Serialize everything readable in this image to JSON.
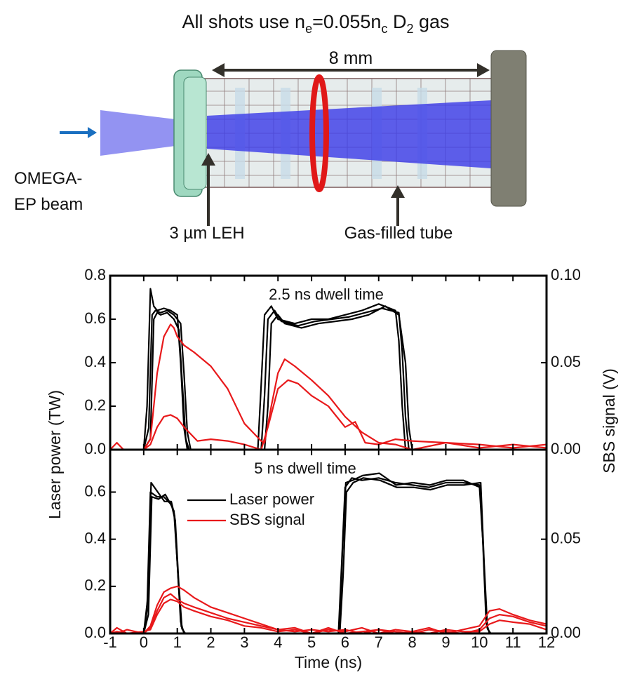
{
  "title_segments": [
    {
      "text": "All shots use n"
    },
    {
      "text": "e",
      "sub": true
    },
    {
      "text": "=0.055n"
    },
    {
      "text": "c",
      "sub": true
    },
    {
      "text": " D"
    },
    {
      "text": "2",
      "sub": true
    },
    {
      "text": " gas"
    }
  ],
  "diagram": {
    "dimension": "8 mm",
    "beam_label": [
      "OMEGA-",
      "EP beam"
    ],
    "leh_label": "3 µm LEH",
    "tube_label": "Gas-filled tube"
  },
  "chart_data": [
    {
      "type": "line",
      "title": "2.5 ns dwell time",
      "y_label": "Laser power (TW)",
      "y2_label": "SBS signal (V)",
      "xlim": [
        -1,
        12
      ],
      "xticks": [
        -1,
        0,
        1,
        2,
        3,
        4,
        5,
        6,
        7,
        8,
        9,
        10,
        11,
        12
      ],
      "ylim": [
        0,
        0.8
      ],
      "yticks": [
        {
          "value": 0,
          "label": "0.0"
        },
        0.2,
        0.4,
        0.6,
        0.8
      ],
      "y2lim": [
        0,
        0.1
      ],
      "y2ticks": [
        {
          "value": 0,
          "label": "0.00"
        },
        0.05,
        {
          "value": 0.1,
          "label": "0.10"
        }
      ],
      "series": [
        {
          "color": "#000000",
          "x": [
            -1,
            0,
            0.1,
            0.2,
            0.3,
            0.4,
            0.6,
            0.8,
            1.0,
            1.1,
            1.2,
            1.3,
            1.5,
            2,
            3,
            3.4,
            3.5,
            3.6,
            3.8,
            4,
            4.5,
            5,
            5.5,
            6,
            6.5,
            7,
            7.5,
            7.6,
            7.7,
            7.8,
            8,
            9,
            12
          ],
          "values": [
            0,
            0,
            0.2,
            0.74,
            0.66,
            0.64,
            0.65,
            0.64,
            0.62,
            0.4,
            0.1,
            0,
            0,
            0,
            0,
            0,
            0.3,
            0.62,
            0.66,
            0.6,
            0.58,
            0.6,
            0.6,
            0.62,
            0.64,
            0.67,
            0.64,
            0.5,
            0.2,
            0,
            0,
            0,
            0
          ]
        },
        {
          "color": "#000000",
          "x": [
            -1,
            0,
            0.15,
            0.25,
            0.35,
            0.5,
            0.7,
            0.9,
            1.1,
            1.2,
            1.3,
            1.4,
            1.6,
            2,
            3,
            3.5,
            3.6,
            3.7,
            3.9,
            4.1,
            4.6,
            5.1,
            5.6,
            6.1,
            6.6,
            7.1,
            7.6,
            7.7,
            7.8,
            7.9,
            8.1,
            9,
            12
          ],
          "values": [
            0,
            0,
            0.1,
            0.62,
            0.64,
            0.63,
            0.64,
            0.62,
            0.58,
            0.35,
            0.08,
            0,
            0,
            0,
            0,
            0,
            0.25,
            0.6,
            0.64,
            0.59,
            0.57,
            0.59,
            0.6,
            0.61,
            0.63,
            0.65,
            0.63,
            0.45,
            0.15,
            0,
            0,
            0,
            0
          ]
        },
        {
          "color": "#000000",
          "x": [
            -1,
            0,
            0.2,
            0.3,
            0.4,
            0.5,
            0.7,
            0.9,
            1.05,
            1.15,
            1.25,
            1.35,
            1.6,
            2,
            3,
            3.6,
            3.7,
            3.8,
            4,
            4.2,
            4.7,
            5.2,
            5.7,
            6.2,
            6.7,
            7.2,
            7.6,
            7.8,
            7.9,
            8,
            8.2,
            9,
            12
          ],
          "values": [
            0,
            0,
            0.05,
            0.6,
            0.63,
            0.62,
            0.63,
            0.6,
            0.55,
            0.3,
            0.05,
            0,
            0,
            0,
            0,
            0,
            0.2,
            0.58,
            0.62,
            0.58,
            0.56,
            0.58,
            0.59,
            0.6,
            0.62,
            0.66,
            0.62,
            0.4,
            0.1,
            0,
            0,
            0,
            0
          ]
        },
        {
          "color": "#e8191b",
          "axis": "y2",
          "x": [
            -1,
            -0.8,
            -0.6,
            0,
            0.2,
            0.4,
            0.6,
            0.8,
            0.9,
            1.0,
            1.2,
            1.5,
            2,
            2.5,
            3,
            3.5,
            3.6,
            3.8,
            4,
            4.2,
            4.5,
            5,
            5.5,
            6,
            6.5,
            7,
            7.5,
            8,
            9,
            10,
            11,
            12
          ],
          "values": [
            0,
            0.004,
            0,
            0,
            0.006,
            0.044,
            0.065,
            0.072,
            0.07,
            0.065,
            0.06,
            0.056,
            0.048,
            0.035,
            0.015,
            0.005,
            0.004,
            0.025,
            0.044,
            0.052,
            0.048,
            0.04,
            0.031,
            0.019,
            0.01,
            0.004,
            0.003,
            0,
            0.004,
            0.003,
            0.001,
            0.003
          ]
        },
        {
          "color": "#e8191b",
          "axis": "y2",
          "x": [
            0,
            0.2,
            0.4,
            0.6,
            0.8,
            1.0,
            1.2,
            1.6,
            2,
            2.5,
            3,
            3.5,
            3.7,
            4,
            4.3,
            4.6,
            5,
            5.5,
            6,
            6.3,
            6.6,
            7,
            7.5,
            8,
            9,
            10,
            11,
            12
          ],
          "values": [
            0,
            0.003,
            0.013,
            0.019,
            0.02,
            0.018,
            0.013,
            0.005,
            0.006,
            0.005,
            0.003,
            0,
            0.013,
            0.035,
            0.04,
            0.038,
            0.031,
            0.025,
            0.013,
            0.016,
            0.004,
            0.003,
            0.006,
            0.005,
            0.004,
            0.001,
            0.003,
            0.001
          ]
        }
      ]
    },
    {
      "type": "line",
      "title": "5 ns dwell time",
      "x_label": "Time (ns)",
      "legend": "upper left",
      "xlim": [
        -1,
        12
      ],
      "xticks": [
        -1,
        0,
        1,
        2,
        3,
        4,
        5,
        6,
        7,
        8,
        9,
        10,
        11,
        12
      ],
      "ylim": [
        0,
        0.78
      ],
      "yticks": [
        {
          "value": 0,
          "label": "0.0"
        },
        0.2,
        0.4,
        0.6
      ],
      "y2lim": [
        0,
        0.0975
      ],
      "y2ticks": [
        {
          "value": 0,
          "label": "0.00"
        },
        0.05
      ],
      "series": [
        {
          "name": "Laser power",
          "color": "#000000",
          "x": [
            -1,
            0,
            0.1,
            0.2,
            0.4,
            0.6,
            0.8,
            0.9,
            1.0,
            1.1,
            1.2,
            1.3,
            2,
            5,
            5.8,
            5.9,
            6.0,
            6.2,
            6.5,
            7,
            7.5,
            8,
            8.5,
            9,
            9.5,
            10,
            10.1,
            10.2,
            10.3,
            11,
            12
          ],
          "values": [
            0,
            0,
            0.1,
            0.6,
            0.58,
            0.58,
            0.55,
            0.52,
            0.3,
            0.05,
            0,
            0,
            0,
            0,
            0,
            0.3,
            0.62,
            0.66,
            0.65,
            0.66,
            0.64,
            0.63,
            0.62,
            0.64,
            0.64,
            0.63,
            0.4,
            0.05,
            0,
            0,
            0
          ]
        },
        {
          "color": "#000000",
          "x": [
            -1,
            0,
            0.12,
            0.22,
            0.42,
            0.62,
            0.82,
            0.92,
            1.02,
            1.12,
            1.22,
            1.32,
            2,
            5,
            5.82,
            5.92,
            6.02,
            6.22,
            6.52,
            7.02,
            7.52,
            8.02,
            8.52,
            9.02,
            9.52,
            10.02,
            10.12,
            10.22,
            10.32,
            11,
            12
          ],
          "values": [
            0,
            0,
            0.15,
            0.64,
            0.6,
            0.56,
            0.56,
            0.5,
            0.25,
            0.03,
            0,
            0,
            0,
            0,
            0,
            0.35,
            0.64,
            0.65,
            0.67,
            0.68,
            0.63,
            0.64,
            0.63,
            0.65,
            0.65,
            0.62,
            0.35,
            0.03,
            0,
            0,
            0
          ]
        },
        {
          "color": "#000000",
          "x": [
            -1,
            0,
            0.14,
            0.24,
            0.44,
            0.64,
            0.84,
            0.94,
            1.04,
            1.14,
            1.24,
            1.34,
            2,
            5,
            5.84,
            5.94,
            6.04,
            6.24,
            6.54,
            7.04,
            7.54,
            8.04,
            8.54,
            9.04,
            9.54,
            10.04,
            10.14,
            10.24,
            10.34,
            11,
            12
          ],
          "values": [
            0,
            0,
            0.08,
            0.58,
            0.57,
            0.59,
            0.54,
            0.48,
            0.22,
            0.02,
            0,
            0,
            0,
            0,
            0,
            0.25,
            0.6,
            0.64,
            0.66,
            0.65,
            0.62,
            0.62,
            0.61,
            0.63,
            0.63,
            0.64,
            0.3,
            0.02,
            0,
            0,
            0
          ]
        },
        {
          "name": "SBS signal",
          "color": "#e8191b",
          "axis": "y2",
          "x": [
            -1,
            -0.8,
            -0.5,
            0,
            0.2,
            0.4,
            0.6,
            0.8,
            1.0,
            1.2,
            1.5,
            2,
            2.5,
            3,
            3.5,
            4,
            4.5,
            5,
            5.5,
            6,
            6.5,
            7,
            7.5,
            8,
            8.5,
            9,
            9.5,
            10,
            10.3,
            10.6,
            11,
            11.5,
            12
          ],
          "values": [
            0,
            0.003,
            0,
            0,
            0.004,
            0.015,
            0.022,
            0.024,
            0.025,
            0.023,
            0.019,
            0.014,
            0.011,
            0.008,
            0.005,
            0.002,
            0.003,
            0,
            0.002,
            0.001,
            0.003,
            0,
            0.002,
            0.001,
            0.003,
            0,
            0.002,
            0.004,
            0.012,
            0.013,
            0.01,
            0.007,
            0.005
          ]
        },
        {
          "color": "#e8191b",
          "axis": "y2",
          "x": [
            -1,
            -0.8,
            -0.5,
            0,
            0.2,
            0.4,
            0.6,
            0.8,
            1.0,
            1.2,
            1.5,
            2,
            2.5,
            3,
            3.5,
            4,
            4.5,
            5,
            5.5,
            6,
            6.5,
            7,
            7.5,
            8,
            8.5,
            9,
            9.5,
            10,
            10.3,
            10.6,
            11,
            11.5,
            12
          ],
          "values": [
            0,
            0,
            0.002,
            0,
            0.003,
            0.012,
            0.019,
            0.021,
            0.018,
            0.016,
            0.014,
            0.011,
            0.008,
            0.006,
            0.004,
            0.002,
            0.001,
            0.002,
            0.001,
            0.002,
            0,
            0.002,
            0.001,
            0,
            0.002,
            0.001,
            0,
            0.002,
            0.008,
            0.01,
            0.009,
            0.006,
            0.004
          ]
        },
        {
          "color": "#e8191b",
          "axis": "y2",
          "x": [
            -1,
            -0.8,
            -0.5,
            0,
            0.2,
            0.4,
            0.6,
            0.8,
            1.0,
            1.2,
            1.5,
            2,
            2.5,
            3,
            3.5,
            4,
            4.5,
            5,
            5.5,
            6,
            6.5,
            7,
            7.5,
            8,
            8.5,
            9,
            9.5,
            10,
            10.3,
            10.6,
            11,
            11.5,
            12
          ],
          "values": [
            0,
            0.001,
            0,
            0.001,
            0.002,
            0.01,
            0.016,
            0.018,
            0.017,
            0.014,
            0.012,
            0.009,
            0.007,
            0.004,
            0.003,
            0.001,
            0.002,
            0,
            0.003,
            0,
            0.001,
            0.002,
            0,
            0.001,
            0,
            0.002,
            0.001,
            0.001,
            0.005,
            0.007,
            0.006,
            0.005,
            0.002
          ]
        }
      ]
    }
  ]
}
